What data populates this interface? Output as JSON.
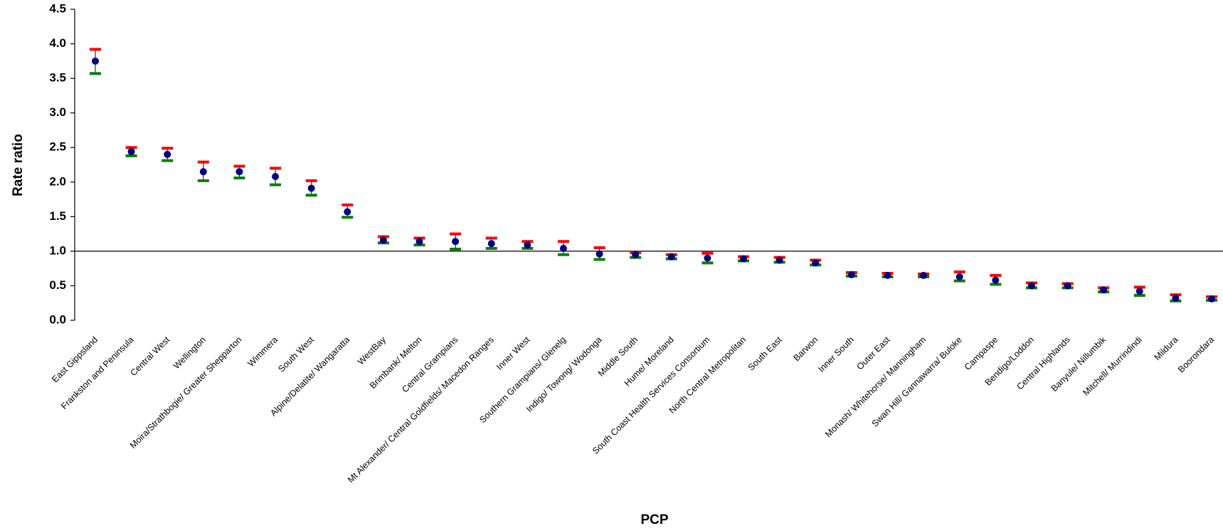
{
  "chart_data": {
    "type": "errorbar",
    "x_label": "PCP",
    "y_label": "Rate ratio",
    "categories": [
      "East Gippsland",
      "Frankston and Peninsula",
      "Central West",
      "Wellington",
      "Moira/Strathbogie/ Greater Shepparton",
      "Wimmera",
      "South West",
      "Alpine/Delatite/ Wangaratta",
      "WestBay",
      "Brimbank/ Melton",
      "Central Grampians",
      "Mt Alexander/ Central Goldfields/ Macedon Ranges",
      "Inner West",
      "Southern Grampians/ Glenelg",
      "Indigo/ Towong/ Wodonga",
      "Middle South",
      "Hume/ Moreland",
      "South Coast Health Services Consortium",
      "North Central Metropolitan",
      "South East",
      "Barwon",
      "Inner South",
      "Outer East",
      "Monash/ Whitehorse/ Manningham",
      "Swan Hill/ Gannawarra/ Buloke",
      "Campaspe",
      "Bendigo/Loddon",
      "Central Highlands",
      "Banyule/ Nillumbik",
      "Mitchell/ Murrindindi",
      "Mildura",
      "Boorondara"
    ],
    "values": [
      3.75,
      2.44,
      2.4,
      2.15,
      2.15,
      2.08,
      1.91,
      1.57,
      1.16,
      1.14,
      1.14,
      1.11,
      1.09,
      1.04,
      0.96,
      0.95,
      0.92,
      0.9,
      0.89,
      0.87,
      0.83,
      0.66,
      0.65,
      0.65,
      0.63,
      0.58,
      0.5,
      0.5,
      0.44,
      0.42,
      0.32,
      0.31
    ],
    "upper": [
      3.92,
      2.5,
      2.49,
      2.29,
      2.23,
      2.2,
      2.02,
      1.67,
      1.21,
      1.19,
      1.25,
      1.19,
      1.14,
      1.14,
      1.05,
      0.98,
      0.95,
      0.97,
      0.92,
      0.91,
      0.87,
      0.69,
      0.68,
      0.67,
      0.7,
      0.65,
      0.54,
      0.53,
      0.47,
      0.48,
      0.37,
      0.34
    ],
    "lower": [
      3.57,
      2.38,
      2.31,
      2.02,
      2.06,
      1.96,
      1.81,
      1.49,
      1.12,
      1.09,
      1.03,
      1.04,
      1.04,
      0.95,
      0.88,
      0.91,
      0.89,
      0.83,
      0.86,
      0.84,
      0.8,
      0.64,
      0.63,
      0.63,
      0.57,
      0.52,
      0.47,
      0.47,
      0.41,
      0.36,
      0.28,
      0.29
    ],
    "color": "#000080",
    "upper_color": "#ff0000",
    "lower_color": "#008000",
    "reference_line": 1,
    "ylim": [
      0,
      4.5
    ],
    "yticks": [
      {
        "value": 0,
        "label": "0.0"
      },
      0.5,
      {
        "value": 1,
        "label": "1.0"
      },
      1.5,
      {
        "value": 2,
        "label": "2.0"
      },
      2.5,
      {
        "value": 3,
        "label": "3.0"
      },
      3.5,
      {
        "value": 4,
        "label": "4.0"
      },
      4.5
    ]
  }
}
